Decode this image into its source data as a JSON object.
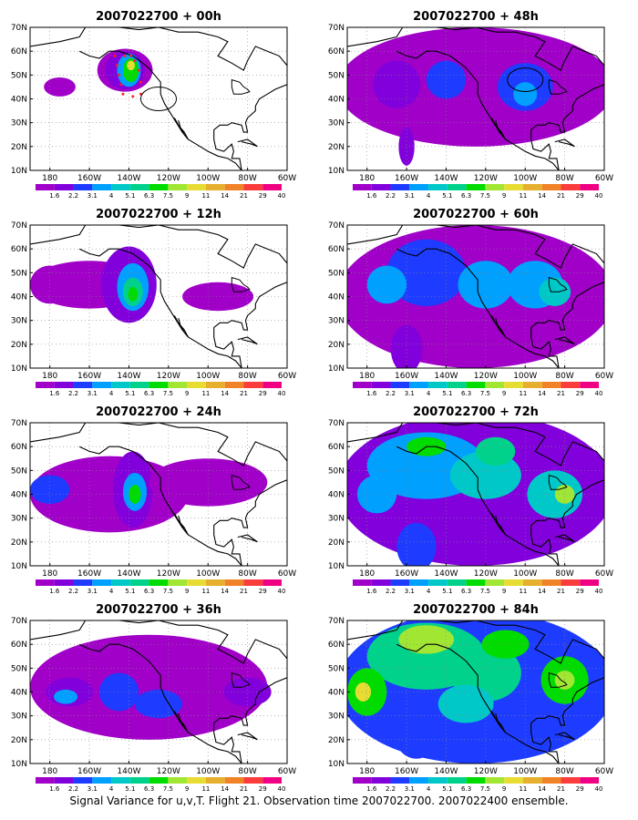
{
  "caption": "Signal Variance for u,v,T. Flight 21. Observation time 2007022700. 2007022400 ensemble.",
  "map": {
    "lon_labels": [
      "180",
      "160W",
      "140W",
      "120W",
      "100W",
      "80W",
      "60W"
    ],
    "lat_labels": [
      "70N",
      "60N",
      "50N",
      "40N",
      "30N",
      "20N",
      "10N"
    ],
    "lon_range": [
      -190,
      -60
    ],
    "lat_range": [
      10,
      70
    ]
  },
  "colorbar": {
    "labels": [
      "1.6",
      "2.2",
      "3.1",
      "4",
      "5.1",
      "6.3",
      "7.5",
      "9",
      "11",
      "14",
      "21",
      "29",
      "40"
    ],
    "colors": [
      "#a000c8",
      "#8200dc",
      "#1e3cff",
      "#00a0ff",
      "#00c8c8",
      "#00d28c",
      "#00dc00",
      "#a0e632",
      "#e6dc32",
      "#e6af2d",
      "#f08228",
      "#fa3c3c",
      "#f00082"
    ]
  },
  "panels": [
    {
      "title": "2007022700 + 00h",
      "lead": 0
    },
    {
      "title": "2007022700 + 12h",
      "lead": 12
    },
    {
      "title": "2007022700 + 24h",
      "lead": 24
    },
    {
      "title": "2007022700 + 36h",
      "lead": 36
    },
    {
      "title": "2007022700 + 48h",
      "lead": 48
    },
    {
      "title": "2007022700 + 60h",
      "lead": 60
    },
    {
      "title": "2007022700 + 72h",
      "lead": 72
    },
    {
      "title": "2007022700 + 84h",
      "lead": 84
    }
  ]
}
